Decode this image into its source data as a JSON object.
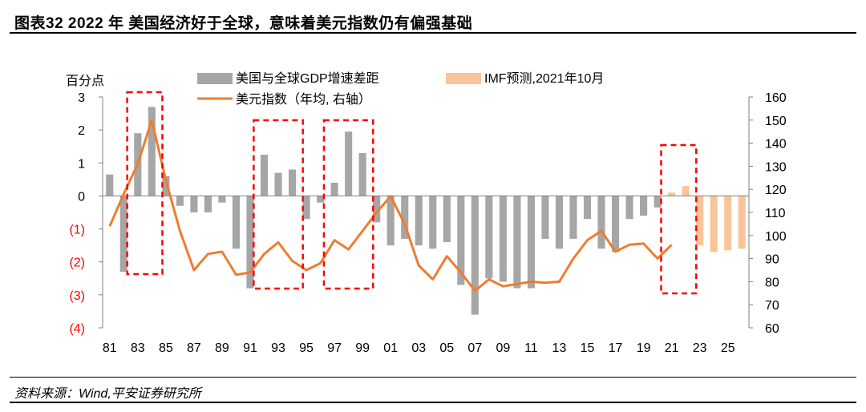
{
  "header": {
    "title": "图表32    2022 年 美国经济好于全球，意味着美元指数仍有偏强基础"
  },
  "source": {
    "text": "资料来源：Wind,平安证券研究所"
  },
  "chart_data": {
    "type": "bar+line",
    "left_axis_title": "百分点",
    "left_ylim": [
      -4,
      3
    ],
    "left_ticks": [
      "3",
      "2",
      "1",
      "0",
      "(1)",
      "(2)",
      "(3)",
      "(4)"
    ],
    "right_ylim": [
      60,
      160
    ],
    "right_ticks": [
      "160",
      "150",
      "140",
      "130",
      "120",
      "110",
      "100",
      "90",
      "80",
      "70",
      "60"
    ],
    "x_years": [
      1981,
      1982,
      1983,
      1984,
      1985,
      1986,
      1987,
      1988,
      1989,
      1990,
      1991,
      1992,
      1993,
      1994,
      1995,
      1996,
      1997,
      1998,
      1999,
      2000,
      2001,
      2002,
      2003,
      2004,
      2005,
      2006,
      2007,
      2008,
      2009,
      2010,
      2011,
      2012,
      2013,
      2014,
      2015,
      2016,
      2017,
      2018,
      2019,
      2020,
      2021,
      2022,
      2023,
      2024,
      2025,
      2026
    ],
    "x_tick_labels": [
      "81",
      "83",
      "85",
      "87",
      "89",
      "91",
      "93",
      "95",
      "97",
      "99",
      "01",
      "03",
      "05",
      "07",
      "09",
      "11",
      "13",
      "15",
      "17",
      "19",
      "21",
      "23",
      "25"
    ],
    "legend": {
      "gdp_gap": "美国与全球GDP增速差距",
      "imf": "IMF预测,2021年10月",
      "dxy": "美元指数（年均, 右轴）"
    },
    "gdp_gap_actual": [
      0.65,
      -2.3,
      1.9,
      2.7,
      0.6,
      -0.3,
      -0.5,
      -0.5,
      -0.2,
      -1.6,
      -2.8,
      1.25,
      0.7,
      0.8,
      -0.7,
      -0.2,
      0.4,
      1.95,
      1.3,
      -0.8,
      -1.5,
      -1.3,
      -1.5,
      -1.6,
      -1.4,
      -2.7,
      -3.6,
      -2.5,
      -2.6,
      -2.8,
      -2.8,
      -1.3,
      -1.6,
      -1.3,
      -0.7,
      -1.6,
      -1.7,
      -0.7,
      -0.6,
      -0.35
    ],
    "gdp_gap_imf": [
      0.1,
      0.3,
      -1.5,
      -1.7,
      -1.65,
      -1.6
    ],
    "imf_start_year": 2021,
    "dxy": [
      104.0,
      118.0,
      131.0,
      150.0,
      124.0,
      102.0,
      85.0,
      92.0,
      93.0,
      83.0,
      84.0,
      92.0,
      97.0,
      89.0,
      85.0,
      88.0,
      98.0,
      94.0,
      102.0,
      110.0,
      117.0,
      105.0,
      87.0,
      81.0,
      91.0,
      84.0,
      76.0,
      81.0,
      78.0,
      79.0,
      80.0,
      79.5,
      80.0,
      90.0,
      98.0,
      102.0,
      93.0,
      96.0,
      96.5,
      90.0,
      96.0
    ],
    "highlight_boxes": [
      {
        "from_year": 1983,
        "to_year": 1984
      },
      {
        "from_year": 1992,
        "to_year": 1994
      },
      {
        "from_year": 1997,
        "to_year": 1999
      },
      {
        "from_year": 2021,
        "to_year": 2022
      }
    ],
    "colors": {
      "gdp_gap": "#a6a6a6",
      "imf": "#f8c59a",
      "dxy": "#ed7d31",
      "highlight": "#ff0000",
      "negative_tick": "#ff0000"
    }
  }
}
